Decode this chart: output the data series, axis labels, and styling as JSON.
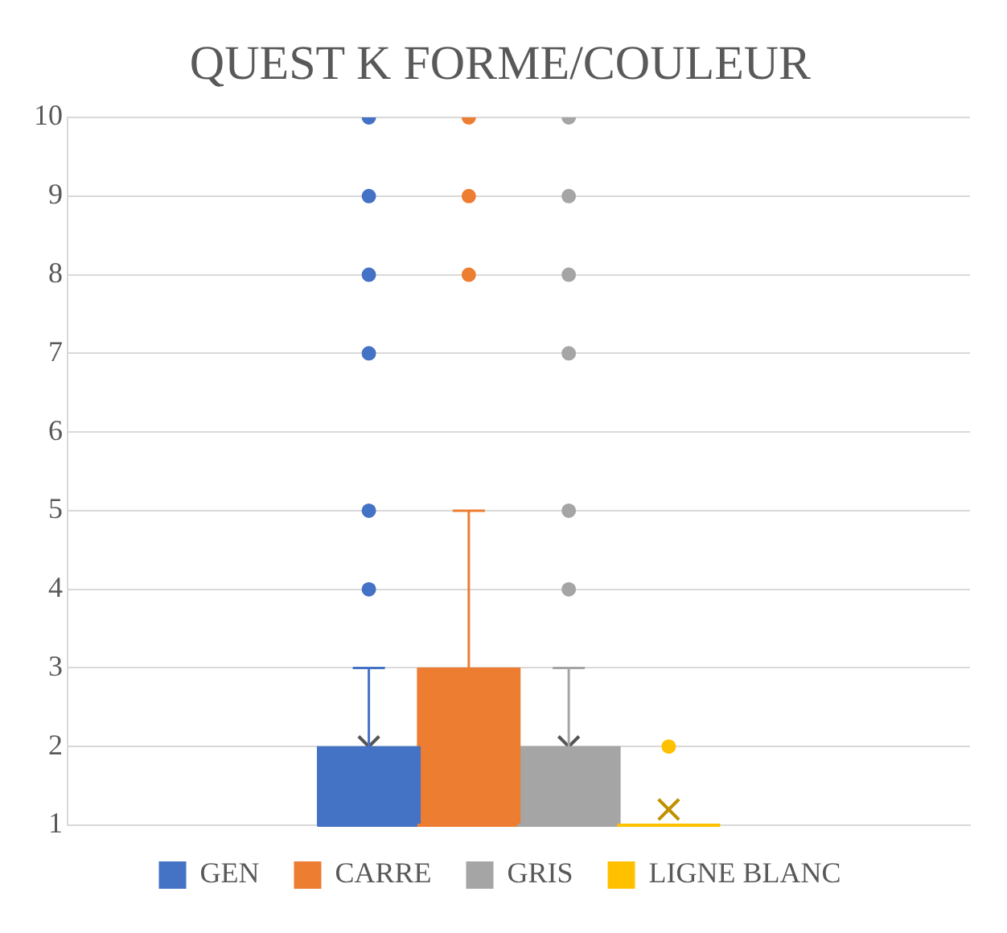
{
  "chart_data": {
    "type": "box",
    "title": "QUEST K FORME/COULEUR",
    "categories": [
      null
    ],
    "series": [
      {
        "name": "GEN",
        "color": "#4472c4",
        "boxes": [
          {
            "low": 1,
            "q1": 1,
            "median": 1,
            "q3": 2,
            "high": 3,
            "mean": 2,
            "outliers": [
              4,
              5,
              7,
              8,
              9,
              10
            ]
          }
        ]
      },
      {
        "name": "CARRE",
        "color": "#ed7d31",
        "boxes": [
          {
            "low": 1,
            "q1": 1,
            "median": 1,
            "q3": 3,
            "high": 5,
            "mean": 2.55,
            "outliers": [
              8,
              9,
              10
            ]
          }
        ]
      },
      {
        "name": "GRIS",
        "color": "#a5a5a5",
        "boxes": [
          {
            "low": 1,
            "q1": 1,
            "median": 1,
            "q3": 2,
            "high": 3,
            "mean": 2,
            "outliers": [
              4,
              5,
              7,
              8,
              9,
              10
            ]
          }
        ]
      },
      {
        "name": "LIGNE BLANC",
        "color": "#ffc000",
        "boxes": [
          {
            "low": 1,
            "q1": 1,
            "median": 1,
            "q3": 1,
            "high": 1,
            "mean": 1.2,
            "outliers": [
              2
            ]
          }
        ]
      }
    ],
    "ylim": [
      1,
      10
    ],
    "yticks": [
      1,
      2,
      3,
      4,
      5,
      6,
      7,
      8,
      9,
      10
    ],
    "grid": "y",
    "legend": "bottom"
  }
}
